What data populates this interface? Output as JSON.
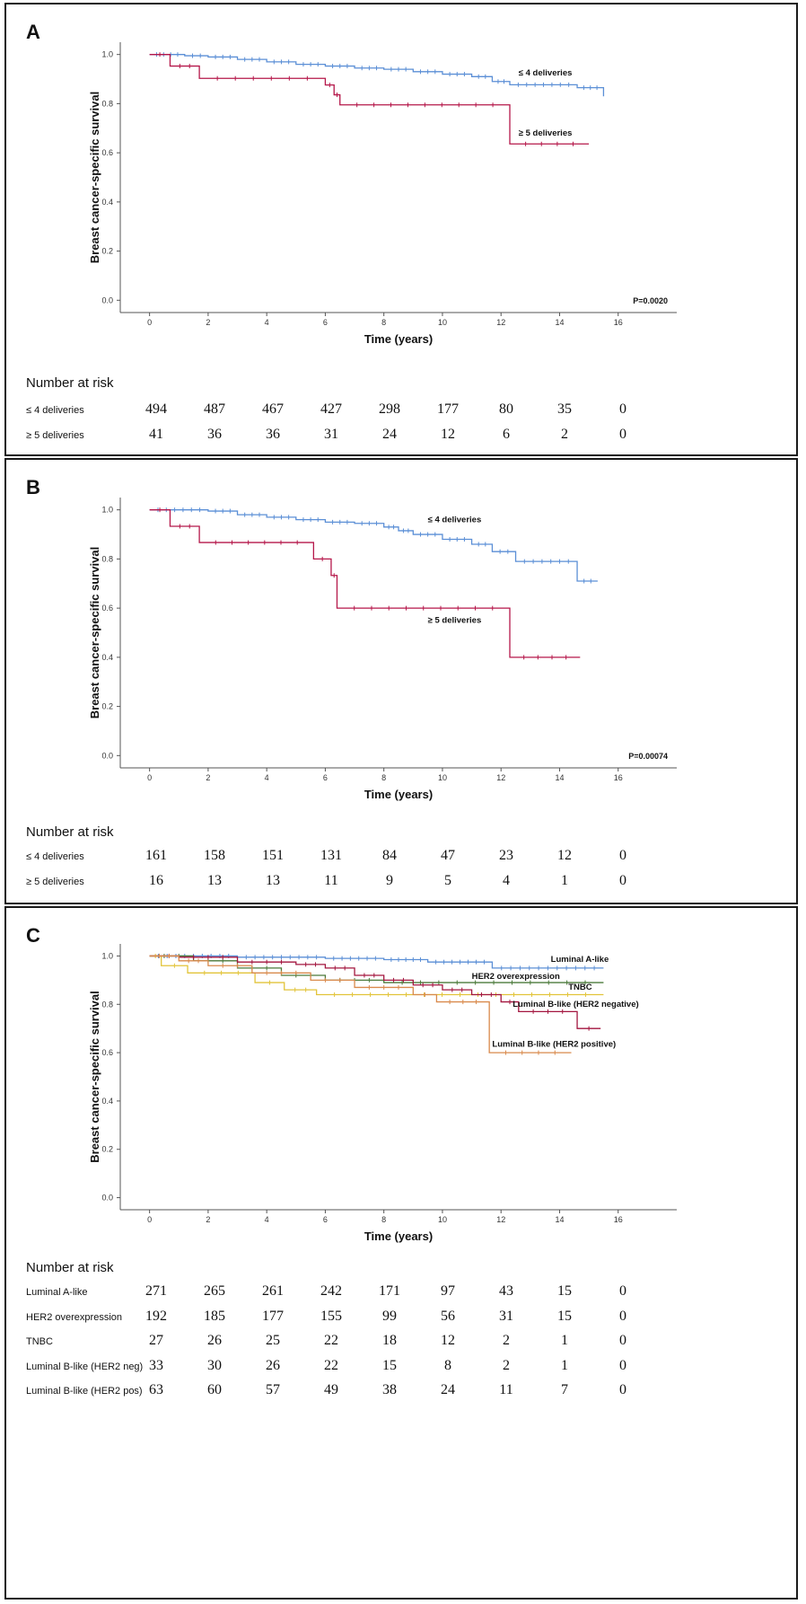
{
  "panels": [
    {
      "letter": "A",
      "ylabel": "Breast cancer-specific survival",
      "xlabel": "Time (years)",
      "pvalue": "P=0.0020",
      "risk_title": "Number at risk",
      "risk_rows": [
        {
          "label": "≤ 4 deliveries",
          "values": [
            "494",
            "487",
            "467",
            "427",
            "298",
            "177",
            "80",
            "35",
            "0"
          ]
        },
        {
          "label": "≥ 5 deliveries",
          "values": [
            "41",
            "36",
            "36",
            "31",
            "24",
            "12",
            "6",
            "2",
            "0"
          ]
        }
      ]
    },
    {
      "letter": "B",
      "ylabel": "Breast cancer-specific survival",
      "xlabel": "Time (years)",
      "pvalue": "P=0.00074",
      "risk_title": "Number at risk",
      "risk_rows": [
        {
          "label": "≤ 4 deliveries",
          "values": [
            "161",
            "158",
            "151",
            "131",
            "84",
            "47",
            "23",
            "12",
            "0"
          ]
        },
        {
          "label": "≥ 5 deliveries",
          "values": [
            "16",
            "13",
            "13",
            "11",
            "9",
            "5",
            "4",
            "1",
            "0"
          ]
        }
      ]
    },
    {
      "letter": "C",
      "ylabel": "Breast cancer-specific survival",
      "xlabel": "Time (years)",
      "pvalue": "",
      "risk_title": "Number at risk",
      "risk_rows": [
        {
          "label": "Luminal A-like",
          "values": [
            "271",
            "265",
            "261",
            "242",
            "171",
            "97",
            "43",
            "15",
            "0"
          ]
        },
        {
          "label": "HER2 overexpression",
          "values": [
            "192",
            "185",
            "177",
            "155",
            "99",
            "56",
            "31",
            "15",
            "0"
          ]
        },
        {
          "label": "TNBC",
          "values": [
            "27",
            "26",
            "25",
            "22",
            "18",
            "12",
            "2",
            "1",
            "0"
          ]
        },
        {
          "label": "Luminal B-like (HER2 neg)",
          "values": [
            "33",
            "30",
            "26",
            "22",
            "15",
            "8",
            "2",
            "1",
            "0"
          ]
        },
        {
          "label": "Luminal B-like (HER2 pos)",
          "values": [
            "63",
            "60",
            "57",
            "49",
            "38",
            "24",
            "11",
            "7",
            "0"
          ]
        }
      ]
    }
  ],
  "chart_data": [
    {
      "type": "line",
      "title": "A",
      "xlabel": "Time (years)",
      "ylabel": "Breast cancer-specific survival",
      "xlim": [
        -1,
        18
      ],
      "ylim": [
        -0.05,
        1.05
      ],
      "xticks": [
        "0",
        "2",
        "4",
        "6",
        "8",
        "10",
        "12",
        "14",
        "16"
      ],
      "yticks": [
        "0.0",
        "0.2",
        "0.4",
        "0.6",
        "0.8",
        "1.0"
      ],
      "series": [
        {
          "name": "≤ 4 deliveries",
          "color": "#5b8fd6",
          "x": [
            0,
            1.2,
            2.0,
            3.0,
            4.0,
            5.0,
            6.0,
            7.0,
            8.0,
            9.0,
            10.0,
            11.0,
            11.7,
            12.3,
            14.6,
            15.5
          ],
          "y": [
            1.0,
            0.995,
            0.99,
            0.98,
            0.97,
            0.96,
            0.953,
            0.945,
            0.94,
            0.93,
            0.92,
            0.91,
            0.89,
            0.877,
            0.865,
            0.83
          ]
        },
        {
          "name": "≥ 5 deliveries",
          "color": "#b5174a",
          "x": [
            0,
            0.7,
            1.7,
            6.0,
            6.3,
            6.5,
            12.3,
            15.0
          ],
          "y": [
            1.0,
            0.953,
            0.903,
            0.876,
            0.836,
            0.795,
            0.636,
            0.636
          ]
        }
      ],
      "labels": [
        {
          "text": "≤ 4 deliveries",
          "x": 12.6,
          "y": 0.915
        },
        {
          "text": "≥ 5 deliveries",
          "x": 12.6,
          "y": 0.67
        }
      ]
    },
    {
      "type": "line",
      "title": "B",
      "xlabel": "Time (years)",
      "ylabel": "Breast cancer-specific survival",
      "xlim": [
        -1,
        18
      ],
      "ylim": [
        -0.05,
        1.05
      ],
      "xticks": [
        "0",
        "2",
        "4",
        "6",
        "8",
        "10",
        "12",
        "14",
        "16"
      ],
      "yticks": [
        "0.0",
        "0.2",
        "0.4",
        "0.6",
        "0.8",
        "1.0"
      ],
      "series": [
        {
          "name": "≤ 4 deliveries",
          "color": "#5b8fd6",
          "x": [
            0,
            2.0,
            3.0,
            4.0,
            5.0,
            6.0,
            7.0,
            8.0,
            8.5,
            9.0,
            10.0,
            11.0,
            11.7,
            12.5,
            14.6,
            15.3
          ],
          "y": [
            1.0,
            0.995,
            0.98,
            0.97,
            0.96,
            0.95,
            0.945,
            0.93,
            0.915,
            0.9,
            0.88,
            0.86,
            0.83,
            0.79,
            0.71,
            0.71
          ]
        },
        {
          "name": "≥ 5 deliveries",
          "color": "#b5174a",
          "x": [
            0,
            0.7,
            1.7,
            5.6,
            6.2,
            6.4,
            12.3,
            14.7
          ],
          "y": [
            1.0,
            0.933,
            0.867,
            0.8,
            0.733,
            0.6,
            0.4,
            0.4
          ]
        }
      ],
      "labels": [
        {
          "text": "≤ 4 deliveries",
          "x": 9.5,
          "y": 0.95
        },
        {
          "text": "≥ 5 deliveries",
          "x": 9.5,
          "y": 0.54
        }
      ]
    },
    {
      "type": "line",
      "title": "C",
      "xlabel": "Time (years)",
      "ylabel": "Breast cancer-specific survival",
      "xlim": [
        -1,
        18
      ],
      "ylim": [
        -0.05,
        1.05
      ],
      "xticks": [
        "0",
        "2",
        "4",
        "6",
        "8",
        "10",
        "12",
        "14",
        "16"
      ],
      "yticks": [
        "0.0",
        "0.2",
        "0.4",
        "0.6",
        "0.8",
        "1.0"
      ],
      "series": [
        {
          "name": "Luminal A-like",
          "color": "#5b8fd6",
          "x": [
            0,
            3.0,
            6.0,
            8.0,
            9.5,
            11.7,
            15.5
          ],
          "y": [
            1.0,
            0.995,
            0.99,
            0.985,
            0.975,
            0.95,
            0.95
          ]
        },
        {
          "name": "HER2 overexpression",
          "color": "#4b7a3a",
          "x": [
            0,
            1.5,
            3.0,
            4.5,
            6.0,
            8.0,
            15.5
          ],
          "y": [
            1.0,
            0.98,
            0.95,
            0.92,
            0.9,
            0.89,
            0.89
          ]
        },
        {
          "name": "TNBC",
          "color": "#e2c43a",
          "x": [
            0,
            0.4,
            1.3,
            3.6,
            4.6,
            5.7,
            15.5
          ],
          "y": [
            1.0,
            0.96,
            0.93,
            0.89,
            0.86,
            0.84,
            0.84
          ]
        },
        {
          "name": "Luminal B-like (HER2 negative)",
          "color": "#a3163f",
          "x": [
            0,
            1.0,
            3.0,
            5.0,
            6.0,
            7.0,
            8.0,
            9.0,
            10.0,
            11.0,
            12.0,
            12.6,
            14.6,
            15.4
          ],
          "y": [
            1.0,
            0.995,
            0.975,
            0.965,
            0.95,
            0.92,
            0.9,
            0.88,
            0.86,
            0.84,
            0.81,
            0.77,
            0.7,
            0.7
          ]
        },
        {
          "name": "Luminal B-like (HER2 positive)",
          "color": "#d98a4c",
          "x": [
            0,
            1.0,
            2.0,
            3.5,
            5.5,
            7.0,
            9.0,
            9.8,
            11.6,
            14.4
          ],
          "y": [
            1.0,
            0.98,
            0.96,
            0.93,
            0.9,
            0.87,
            0.84,
            0.81,
            0.6,
            0.6
          ]
        }
      ],
      "labels": [
        {
          "text": "Luminal A-like",
          "x": 13.7,
          "y": 0.975
        },
        {
          "text": "HER2 overexpression",
          "x": 11.0,
          "y": 0.905
        },
        {
          "text": "TNBC",
          "x": 14.3,
          "y": 0.86
        },
        {
          "text": "Luminal B-like (HER2 negative)",
          "x": 12.4,
          "y": 0.79
        },
        {
          "text": "Luminal B-like (HER2 positive)",
          "x": 11.7,
          "y": 0.625
        }
      ]
    }
  ]
}
